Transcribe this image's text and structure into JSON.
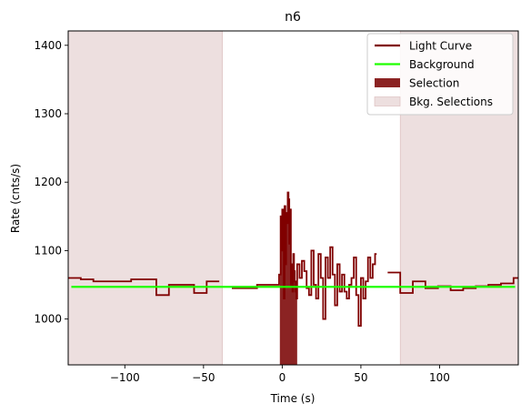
{
  "chart_data": {
    "type": "line",
    "title": "n6",
    "xlabel": "Time (s)",
    "ylabel": "Rate (cnts/s)",
    "xlim": [
      -136,
      150
    ],
    "ylim": [
      933,
      1421
    ],
    "x_ticks": [
      -100,
      -50,
      0,
      50,
      100
    ],
    "x_tick_labels": [
      "−100",
      "−50",
      "0",
      "50",
      "100"
    ],
    "y_ticks": [
      1000,
      1100,
      1200,
      1300,
      1400
    ],
    "y_tick_labels": [
      "1000",
      "1100",
      "1200",
      "1300",
      "1400"
    ],
    "grid": false,
    "legend_position": "top-right",
    "legend": [
      {
        "label": "Light Curve",
        "kind": "line",
        "color": "#800000"
      },
      {
        "label": "Background",
        "kind": "line",
        "color": "#1fff00"
      },
      {
        "label": "Selection",
        "kind": "patch",
        "color": "#8b2323"
      },
      {
        "label": "Bkg. Selections",
        "kind": "patch",
        "color": "#eddfdf"
      }
    ],
    "light_curve_steps": [
      [
        -136,
        1060
      ],
      [
        -128,
        1058
      ],
      [
        -120,
        1055
      ],
      [
        -112,
        1055
      ],
      [
        -104,
        1055
      ],
      [
        -96,
        1058
      ],
      [
        -88,
        1058
      ],
      [
        -80,
        1035
      ],
      [
        -72,
        1050
      ],
      [
        -64,
        1050
      ],
      [
        -56,
        1038
      ],
      [
        -48,
        1055
      ],
      [
        -40,
        1052
      ],
      [
        -32,
        1045
      ],
      [
        -24,
        1045
      ],
      [
        -16,
        1050
      ],
      [
        -8,
        1050
      ],
      [
        -2.0,
        1065
      ],
      [
        -1.0,
        1150
      ],
      [
        -0.5,
        1100
      ],
      [
        0.0,
        1160
      ],
      [
        0.5,
        1120
      ],
      [
        1.0,
        1030
      ],
      [
        1.5,
        1165
      ],
      [
        2.0,
        1080
      ],
      [
        2.5,
        1155
      ],
      [
        3.0,
        1140
      ],
      [
        3.5,
        1185
      ],
      [
        4.0,
        1175
      ],
      [
        4.5,
        1110
      ],
      [
        5.0,
        1160
      ],
      [
        5.5,
        1050
      ],
      [
        6.0,
        1080
      ],
      [
        6.5,
        1040
      ],
      [
        7.0,
        1095
      ],
      [
        7.5,
        1070
      ],
      [
        8.0,
        1055
      ],
      [
        8.5,
        1040
      ],
      [
        9.0,
        1030
      ],
      [
        9.5,
        1080
      ],
      [
        11,
        1060
      ],
      [
        12.5,
        1085
      ],
      [
        14,
        1070
      ],
      [
        15.5,
        1045
      ],
      [
        17,
        1035
      ],
      [
        18.5,
        1100
      ],
      [
        20,
        1050
      ],
      [
        21.5,
        1030
      ],
      [
        23,
        1095
      ],
      [
        24.5,
        1060
      ],
      [
        26,
        1000
      ],
      [
        27.5,
        1090
      ],
      [
        29,
        1060
      ],
      [
        30.5,
        1105
      ],
      [
        32,
        1065
      ],
      [
        33.5,
        1020
      ],
      [
        35,
        1080
      ],
      [
        36.5,
        1040
      ],
      [
        38,
        1065
      ],
      [
        39.5,
        1040
      ],
      [
        41,
        1030
      ],
      [
        42.5,
        1050
      ],
      [
        44,
        1060
      ],
      [
        45.5,
        1090
      ],
      [
        47,
        1035
      ],
      [
        48.5,
        990
      ],
      [
        50,
        1060
      ],
      [
        51.5,
        1030
      ],
      [
        53,
        1055
      ],
      [
        54.5,
        1090
      ],
      [
        56,
        1060
      ],
      [
        57.5,
        1080
      ],
      [
        59,
        1095
      ],
      [
        60,
        1050
      ],
      [
        67,
        1068
      ],
      [
        75,
        1038
      ],
      [
        83,
        1055
      ],
      [
        91,
        1045
      ],
      [
        99,
        1048
      ],
      [
        107,
        1042
      ],
      [
        115,
        1045
      ],
      [
        123,
        1048
      ],
      [
        131,
        1050
      ],
      [
        139,
        1052
      ],
      [
        147,
        1060
      ],
      [
        150,
        1060
      ]
    ],
    "light_curve_gaps": [
      [
        -40,
        -32
      ],
      [
        60,
        67
      ]
    ],
    "background": {
      "x": [
        -134,
        148
      ],
      "y": [
        1047,
        1047
      ]
    },
    "selection": {
      "x_range": [
        -1.5,
        9.5
      ]
    },
    "bkg_selections": [
      [
        -136,
        -38
      ],
      [
        75,
        150
      ]
    ]
  }
}
